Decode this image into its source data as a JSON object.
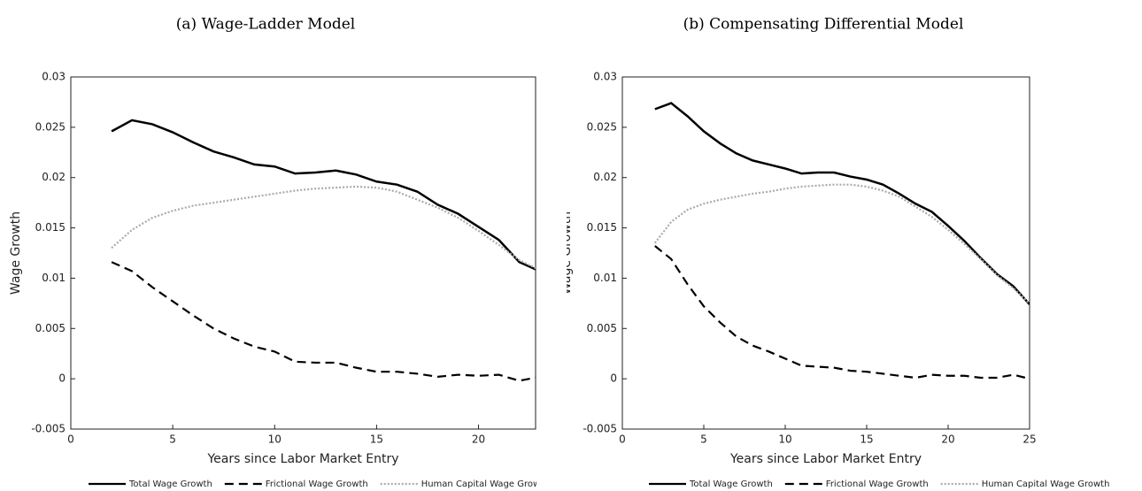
{
  "chart_data": [
    {
      "type": "line",
      "title": "(a) Wage-Ladder Model",
      "x_label": "Years since Labor Market Entry",
      "y_label": "Wage Growth",
      "x": [
        2,
        3,
        4,
        5,
        6,
        7,
        8,
        9,
        10,
        11,
        12,
        13,
        14,
        15,
        16,
        17,
        18,
        19,
        20,
        21,
        22,
        23
      ],
      "series": [
        {
          "name": "Total Wage Growth",
          "color": "#000000",
          "linestyle": "solid",
          "values": [
            0.0246,
            0.0257,
            0.0253,
            0.0245,
            0.0235,
            0.0226,
            0.022,
            0.0213,
            0.0211,
            0.0204,
            0.0205,
            0.0207,
            0.0203,
            0.0196,
            0.0193,
            0.0186,
            0.0173,
            0.0164,
            0.0151,
            0.0138,
            0.0116,
            0.0107
          ]
        },
        {
          "name": "Frictional Wage Growth",
          "color": "#000000",
          "linestyle": "dashed",
          "values": [
            0.0116,
            0.0107,
            0.0091,
            0.0077,
            0.0063,
            0.005,
            0.004,
            0.0032,
            0.0027,
            0.0017,
            0.0016,
            0.0016,
            0.0011,
            0.0007,
            0.0007,
            0.0005,
            0.0002,
            0.0004,
            0.0003,
            0.0004,
            -0.0002,
            0.0002
          ]
        },
        {
          "name": "Human Capital Wage Growth",
          "color": "#aaaaaa",
          "linestyle": "dotted",
          "values": [
            0.013,
            0.0148,
            0.016,
            0.0167,
            0.0172,
            0.0175,
            0.0178,
            0.0181,
            0.0184,
            0.0187,
            0.0189,
            0.019,
            0.0191,
            0.019,
            0.0186,
            0.0178,
            0.017,
            0.016,
            0.0147,
            0.0133,
            0.0118,
            0.0108
          ]
        }
      ],
      "xlim": [
        0,
        22.8
      ],
      "xticks": [
        0,
        5,
        10,
        15,
        20
      ],
      "ylim": [
        -0.005,
        0.03
      ],
      "yticks": [
        -0.005,
        0,
        0.005,
        0.01,
        0.015,
        0.02,
        0.025,
        0.03
      ]
    },
    {
      "type": "line",
      "title": "(b) Compensating Differential Model",
      "x_label": "Years since Labor Market Entry",
      "y_label": "Wage Growth",
      "x": [
        2,
        3,
        4,
        5,
        6,
        7,
        8,
        9,
        10,
        11,
        12,
        13,
        14,
        15,
        16,
        17,
        18,
        19,
        20,
        21,
        22,
        23,
        24,
        25
      ],
      "series": [
        {
          "name": "Total Wage Growth",
          "color": "#000000",
          "linestyle": "solid",
          "values": [
            0.0268,
            0.0274,
            0.0261,
            0.0246,
            0.0234,
            0.0224,
            0.0217,
            0.0213,
            0.0209,
            0.0204,
            0.0205,
            0.0205,
            0.0201,
            0.0198,
            0.0193,
            0.0184,
            0.0174,
            0.0166,
            0.0152,
            0.0137,
            0.012,
            0.0104,
            0.0092,
            0.0074
          ]
        },
        {
          "name": "Frictional Wage Growth",
          "color": "#000000",
          "linestyle": "dashed",
          "values": [
            0.0132,
            0.0119,
            0.0094,
            0.0072,
            0.0056,
            0.0042,
            0.0033,
            0.0027,
            0.002,
            0.0013,
            0.0012,
            0.0011,
            0.0008,
            0.0007,
            0.0005,
            0.0003,
            0.0001,
            0.0004,
            0.0003,
            0.0003,
            0.0001,
            0.0001,
            0.0004,
            0
          ]
        },
        {
          "name": "Human Capital Wage Growth",
          "color": "#aaaaaa",
          "linestyle": "dotted",
          "values": [
            0.0135,
            0.0156,
            0.0168,
            0.0174,
            0.0178,
            0.0181,
            0.0184,
            0.0186,
            0.0189,
            0.0191,
            0.0192,
            0.0193,
            0.0193,
            0.0191,
            0.0187,
            0.0181,
            0.0171,
            0.0161,
            0.0148,
            0.0134,
            0.0119,
            0.0103,
            0.009,
            0.0075
          ]
        }
      ],
      "xlim": [
        0,
        25
      ],
      "xticks": [
        0,
        5,
        10,
        15,
        20,
        25
      ],
      "ylim": [
        -0.005,
        0.03
      ],
      "yticks": [
        -0.005,
        0,
        0.005,
        0.01,
        0.015,
        0.02,
        0.025,
        0.03
      ]
    }
  ]
}
